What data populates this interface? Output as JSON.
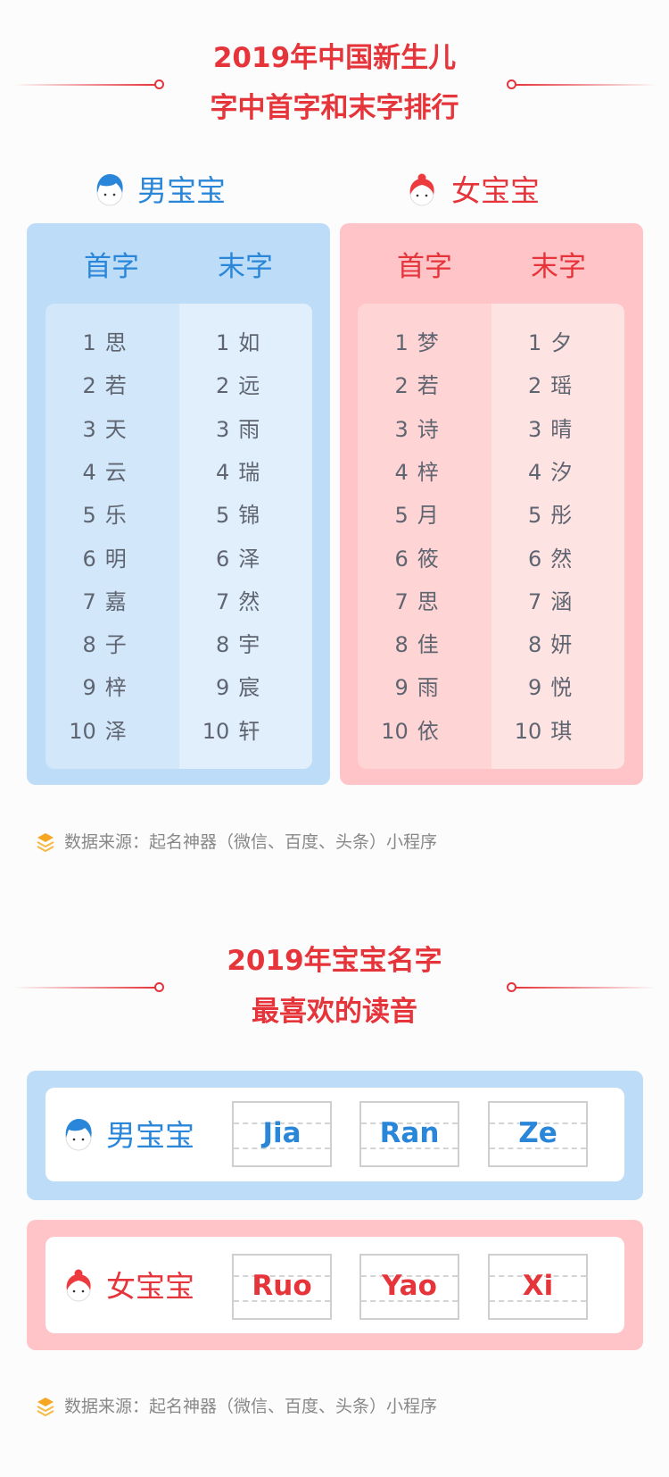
{
  "section1": {
    "title_line1": "2019年中国新生儿",
    "title_line2": "字中首字和末字排行"
  },
  "colors": {
    "red": "#e5343a",
    "blue": "#2a86d8",
    "boy_card": "#bcdcf7",
    "girl_card": "#ffc4c7",
    "text": "#5f6570"
  },
  "boy": {
    "label": "男宝宝",
    "icon": "boy-avatar-icon",
    "first_header": "首字",
    "last_header": "末字",
    "first": [
      "思",
      "若",
      "天",
      "云",
      "乐",
      "明",
      "嘉",
      "子",
      "梓",
      "泽"
    ],
    "last": [
      "如",
      "远",
      "雨",
      "瑞",
      "锦",
      "泽",
      "然",
      "宇",
      "宸",
      "轩"
    ]
  },
  "girl": {
    "label": "女宝宝",
    "icon": "girl-avatar-icon",
    "first_header": "首字",
    "last_header": "末字",
    "first": [
      "梦",
      "若",
      "诗",
      "梓",
      "月",
      "筱",
      "思",
      "佳",
      "雨",
      "依"
    ],
    "last": [
      "夕",
      "瑶",
      "晴",
      "汐",
      "彤",
      "然",
      "涵",
      "妍",
      "悦",
      "琪"
    ]
  },
  "ranks": [
    "1",
    "2",
    "3",
    "4",
    "5",
    "6",
    "7",
    "8",
    "9",
    "10"
  ],
  "source": "数据来源：起名神器（微信、百度、头条）小程序",
  "section2": {
    "title_line1": "2019年宝宝名字",
    "title_line2": "最喜欢的读音",
    "boy": {
      "label": "男宝宝",
      "sounds": [
        "Jia",
        "Ran",
        "Ze"
      ]
    },
    "girl": {
      "label": "女宝宝",
      "sounds": [
        "Ruo",
        "Yao",
        "Xi"
      ]
    }
  },
  "source2": "数据来源：起名神器（微信、百度、头条）小程序"
}
